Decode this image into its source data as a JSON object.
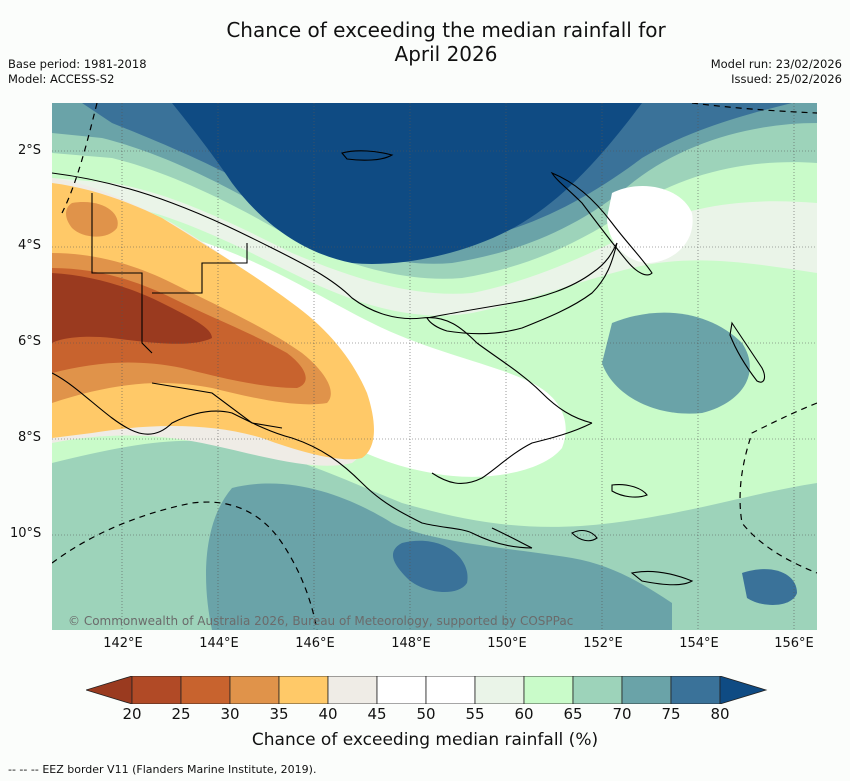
{
  "title": {
    "line1": "Chance of exceeding the median rainfall for",
    "line2": "April 2026"
  },
  "meta": {
    "base_period": "Base period: 1981-2018",
    "model": "Model: ACCESS-S2",
    "model_run": "Model run: 23/02/2026",
    "issued": "Issued: 25/02/2026"
  },
  "map": {
    "region": "Papua New Guinea",
    "credit": "© Commonwealth of Australia 2026, Bureau of Meteorology, supported by COSPPac",
    "lat_labels": [
      "2°S",
      "4°S",
      "6°S",
      "8°S",
      "10°S"
    ],
    "lon_labels": [
      "142°E",
      "144°E",
      "146°E",
      "148°E",
      "150°E",
      "152°E",
      "154°E",
      "156°E"
    ]
  },
  "colorbar": {
    "ticks": [
      "20",
      "25",
      "30",
      "35",
      "40",
      "45",
      "50",
      "55",
      "60",
      "65",
      "70",
      "75",
      "80"
    ],
    "colors": {
      "below_20": "#9a3a1f",
      "c20_25": "#b14a26",
      "c25_30": "#c8632e",
      "c30_35": "#e0934a",
      "c35_40": "#ffc968",
      "c40_45": "#efece6",
      "c45_50": "#ffffff",
      "c50_55": "#ffffff",
      "c55_60": "#eaf4e8",
      "c60_65": "#c9fbc9",
      "c65_70": "#9dd3ba",
      "c70_75": "#6aa3a8",
      "c75_80": "#3a7299",
      "above_80": "#0f4b83"
    },
    "label": "Chance of exceeding median rainfall (%)"
  },
  "legend": {
    "text": "EEZ border V11 (Flanders Marine Institute, 2019)."
  }
}
